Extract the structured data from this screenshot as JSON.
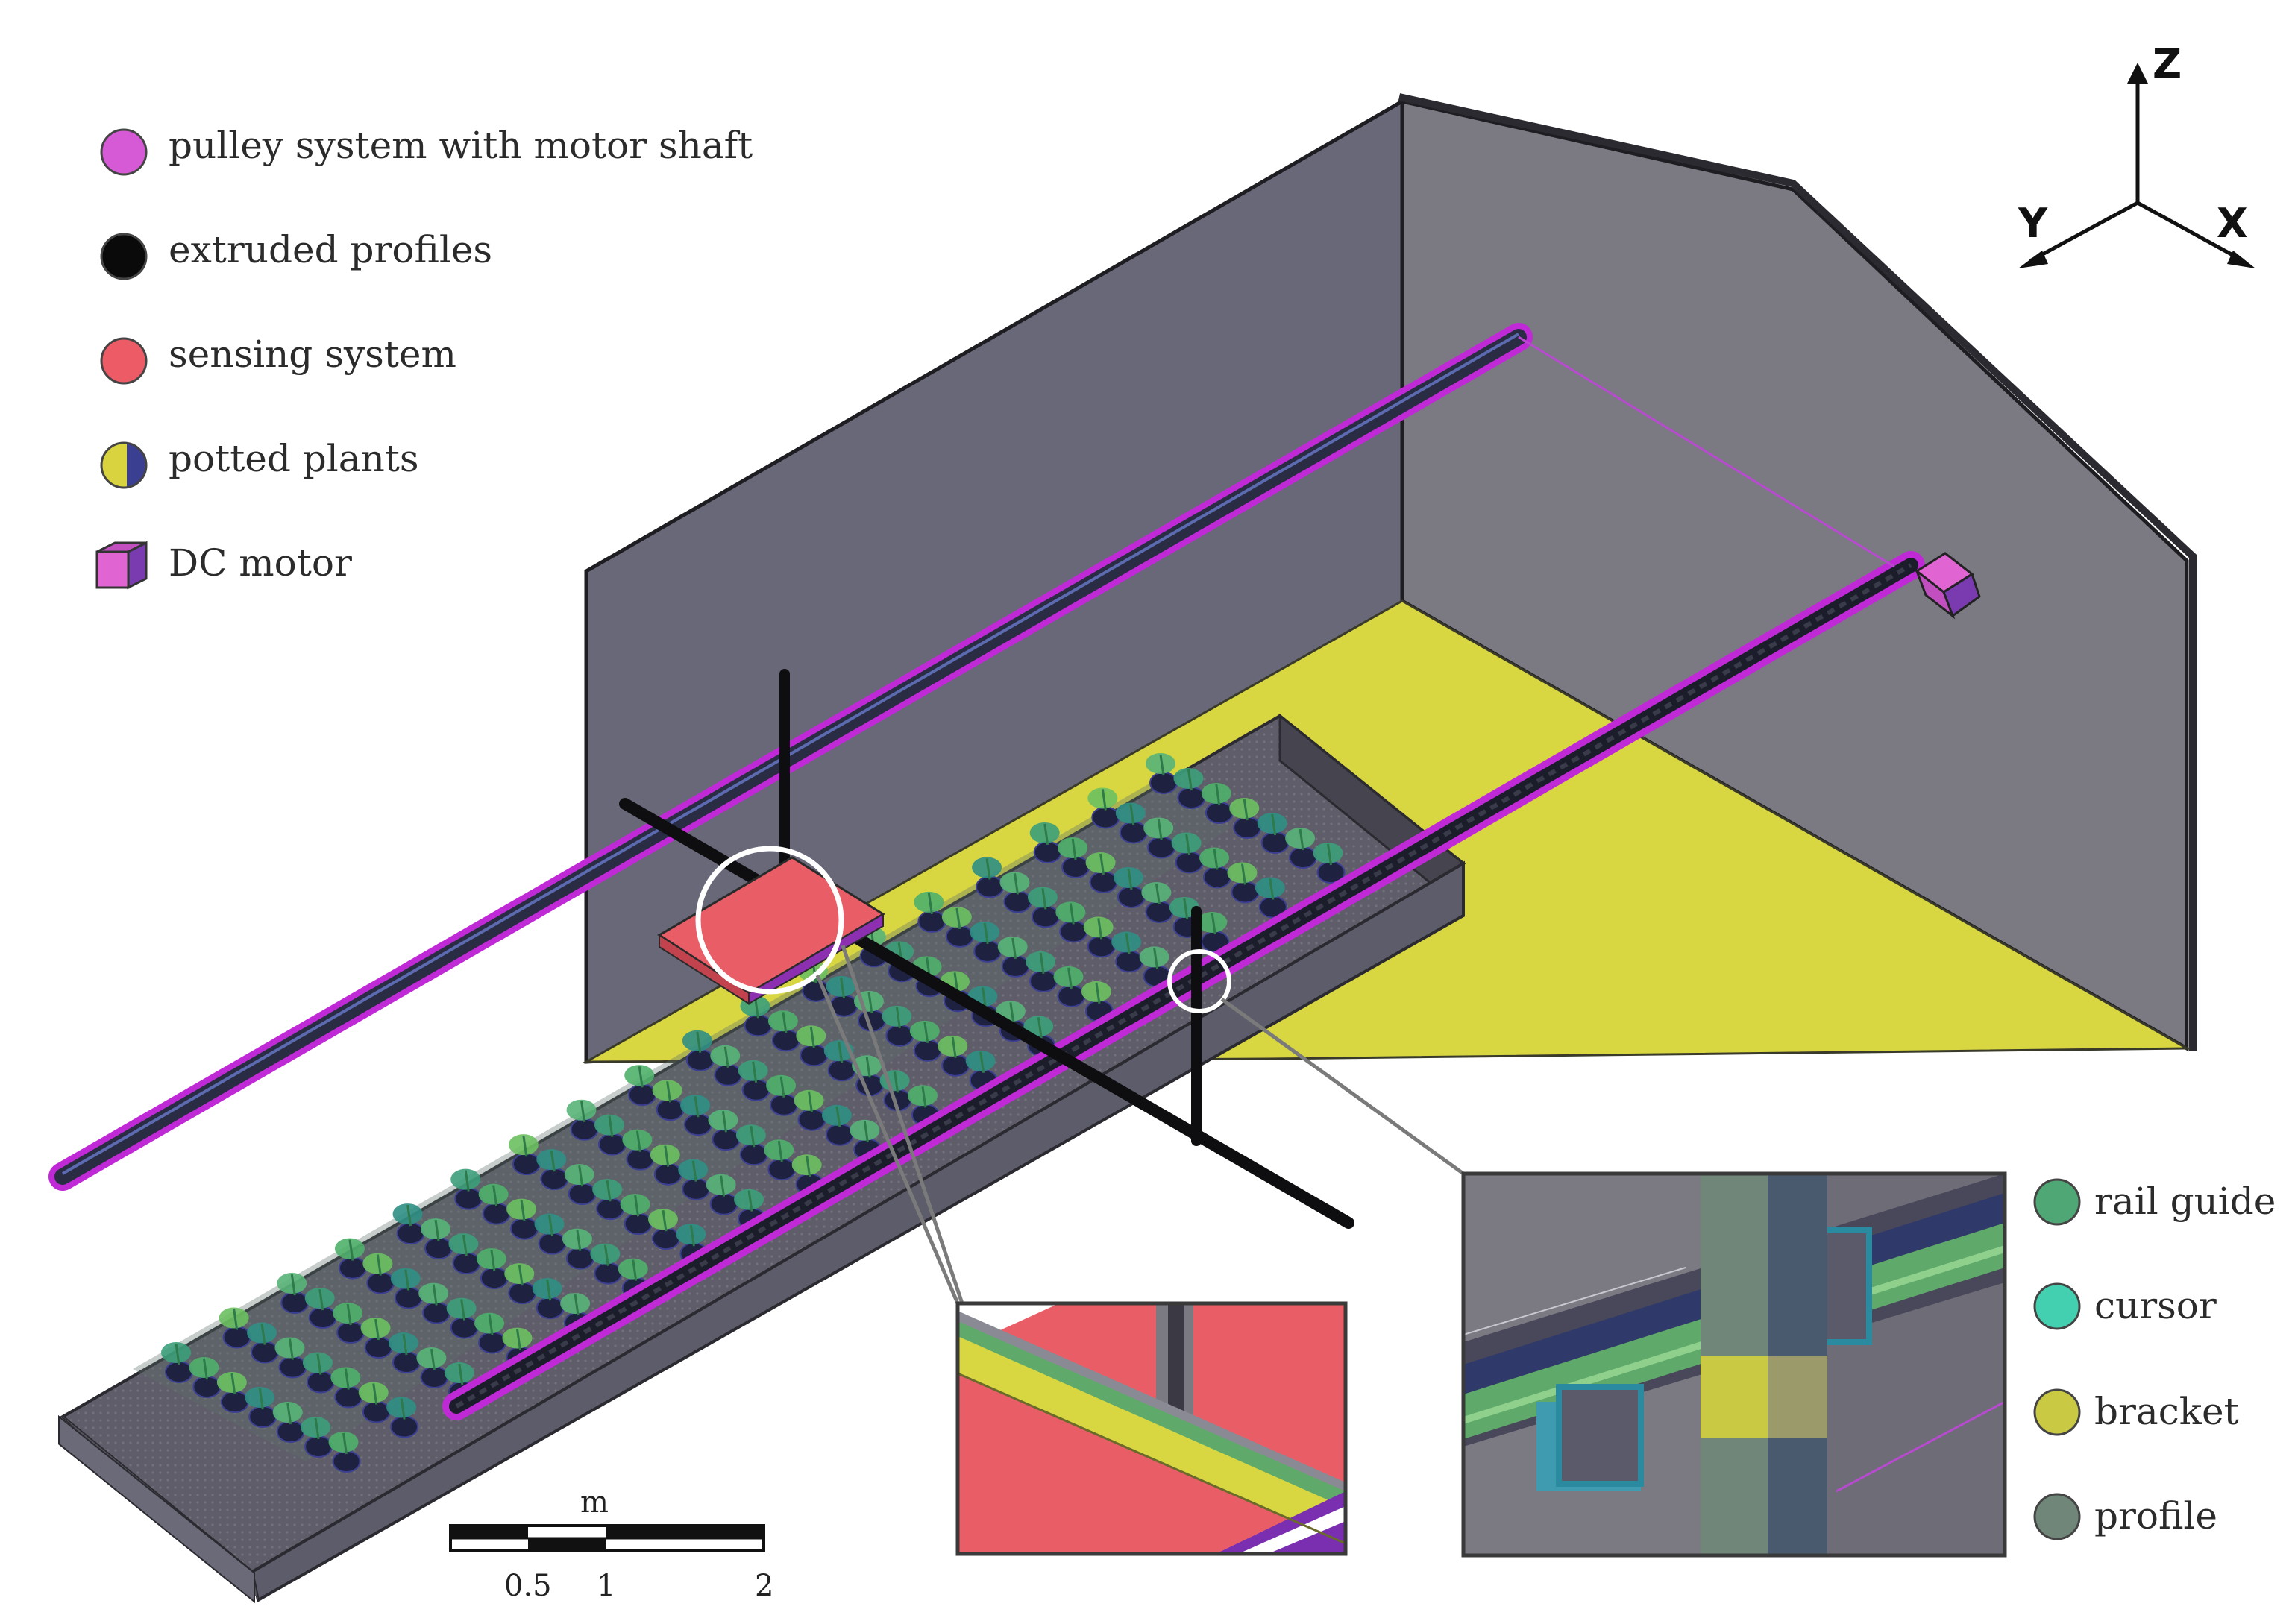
{
  "legend": {
    "items": [
      {
        "key": "pulley",
        "label": "pulley system with motor shaft",
        "color": "#d65ad6",
        "icon": "circle"
      },
      {
        "key": "profiles",
        "label": "extruded profiles",
        "color": "#0a0a0a",
        "icon": "circle"
      },
      {
        "key": "sensing",
        "label": "sensing system",
        "color": "#ec5b66",
        "icon": "circle"
      },
      {
        "key": "plants",
        "label": "potted plants",
        "colors": [
          "#d8d33e",
          "#3b3f91"
        ],
        "icon": "split-circle"
      },
      {
        "key": "motor",
        "label": "DC motor",
        "colors": [
          "#e064d2",
          "#7a3ab0"
        ],
        "icon": "cube"
      }
    ]
  },
  "axes": {
    "z": "Z",
    "y": "Y",
    "x": "X"
  },
  "detail_legend": {
    "items": [
      {
        "key": "rail-guide",
        "label": "rail guide",
        "color": "#4fa775"
      },
      {
        "key": "cursor",
        "label": "cursor",
        "color": "#43d0b0"
      },
      {
        "key": "bracket",
        "label": "bracket",
        "color": "#c9c944"
      },
      {
        "key": "profile",
        "label": "profile",
        "color": "#6f8678"
      }
    ]
  },
  "scale_bar": {
    "unit": "m",
    "ticks": [
      "0.5",
      "1",
      "2"
    ]
  },
  "colors": {
    "wall_dark": "#6a6a7a",
    "wall_light": "#7b7a82",
    "floor": "#d8d641",
    "bench_side": "#5c5c6a",
    "bench_top": "#5a5a66",
    "rail_highlight": "#c02ad6",
    "sensor": "#e95d67"
  }
}
